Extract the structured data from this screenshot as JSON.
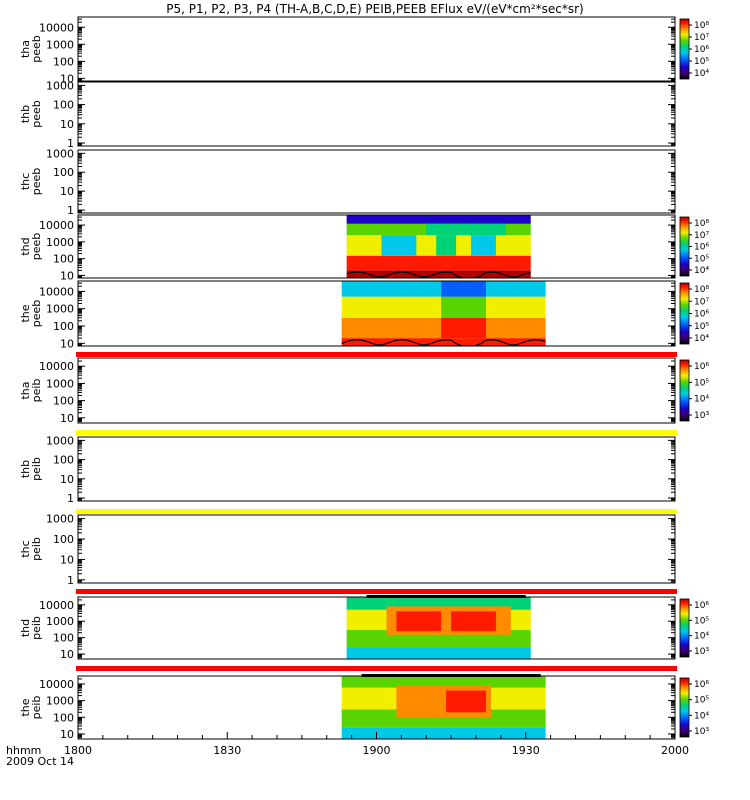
{
  "chart_data": {
    "type": "heatmap",
    "title": "P5, P1, P2, P3, P4 (TH-A,B,C,D,E) PEIB,PEEB EFlux eV/(eV*cm²*sec*sr)",
    "x": {
      "ticks": [
        "1800",
        "1830",
        "1900",
        "1930",
        "2000"
      ],
      "tick_values": [
        0,
        30,
        60,
        90,
        120
      ],
      "range": [
        0,
        120
      ],
      "units": "minutes after 18:00",
      "label_top": "hhmm",
      "label_bottom": "2009 Oct 14"
    },
    "colorbar_palette": [
      "#000000",
      "#3b0072",
      "#1e00c8",
      "#0060ff",
      "#00c8e8",
      "#00d278",
      "#5ad400",
      "#f2ee00",
      "#ff8c00",
      "#ff1a00",
      "#b00000"
    ],
    "panels": [
      {
        "id": "tha-peeb",
        "label": [
          "tha",
          "peeb"
        ],
        "yscale": "log",
        "ytick_labels": [
          "10000",
          "1000",
          "100",
          "10"
        ],
        "ytick_values": [
          10000,
          1000,
          100,
          10
        ],
        "ylim": [
          7,
          40000
        ],
        "colorbar": {
          "labels": [
            "10⁸",
            "10⁷",
            "10⁶",
            "10⁵",
            "10⁴"
          ]
        },
        "data": null,
        "status_bar": null
      },
      {
        "id": "thb-peeb",
        "label": [
          "thb",
          "peeb"
        ],
        "yscale": "log",
        "ytick_labels": [
          "1000",
          "100",
          "10",
          "1"
        ],
        "ytick_values": [
          1000,
          100,
          10,
          1
        ],
        "ylim": [
          0.7,
          1500
        ],
        "colorbar": null,
        "data": null,
        "status_bar": null
      },
      {
        "id": "thc-peeb",
        "label": [
          "thc",
          "peeb"
        ],
        "yscale": "log",
        "ytick_labels": [
          "1000",
          "100",
          "10",
          "1"
        ],
        "ytick_values": [
          1000,
          100,
          10,
          1
        ],
        "ylim": [
          0.7,
          1500
        ],
        "colorbar": null,
        "data": null,
        "status_bar": null
      },
      {
        "id": "thd-peeb",
        "label": [
          "thd",
          "peeb"
        ],
        "yscale": "log",
        "ytick_labels": [
          "10000",
          "1000",
          "100",
          "10"
        ],
        "ytick_values": [
          10000,
          1000,
          100,
          10
        ],
        "ylim": [
          7,
          40000
        ],
        "colorbar": {
          "labels": [
            "10⁸",
            "10⁷",
            "10⁶",
            "10⁵",
            "10⁴"
          ]
        },
        "data": {
          "t_start": 54,
          "t_end": 91,
          "type": "electron",
          "bands": [
            {
              "e_min": 7,
              "e_max": 20,
              "t_from": 54,
              "t_to": 91,
              "color": "#b00000"
            },
            {
              "e_min": 20,
              "e_max": 150,
              "t_from": 54,
              "t_to": 91,
              "color": "#ff1a00"
            },
            {
              "e_min": 150,
              "e_max": 2500,
              "t_from": 54,
              "t_to": 91,
              "color": "#f2ee00"
            },
            {
              "e_min": 2500,
              "e_max": 12000,
              "t_from": 54,
              "t_to": 91,
              "color": "#5ad400"
            },
            {
              "e_min": 12000,
              "e_max": 40000,
              "t_from": 54,
              "t_to": 91,
              "color": "#1e00c8"
            },
            {
              "e_min": 150,
              "e_max": 2500,
              "t_from": 61,
              "t_to": 68,
              "color": "#00c8e8"
            },
            {
              "e_min": 150,
              "e_max": 2500,
              "t_from": 72,
              "t_to": 76,
              "color": "#00d278"
            },
            {
              "e_min": 150,
              "e_max": 2500,
              "t_from": 79,
              "t_to": 84,
              "color": "#00c8e8"
            },
            {
              "e_min": 2500,
              "e_max": 12000,
              "t_from": 70,
              "t_to": 86,
              "color": "#00d278"
            }
          ],
          "spacecraft_potential_line": true
        },
        "status_bar": null
      },
      {
        "id": "the-peeb",
        "label": [
          "the",
          "peeb"
        ],
        "yscale": "log",
        "ytick_labels": [
          "10000",
          "1000",
          "100",
          "10"
        ],
        "ytick_values": [
          10000,
          1000,
          100,
          10
        ],
        "ylim": [
          7,
          40000
        ],
        "colorbar": {
          "labels": [
            "10⁸",
            "10⁷",
            "10⁶",
            "10⁵",
            "10⁴"
          ]
        },
        "data": {
          "t_start": 53,
          "t_end": 94,
          "type": "electron",
          "bands": [
            {
              "e_min": 7,
              "e_max": 20,
              "t_from": 53,
              "t_to": 94,
              "color": "#ff1a00"
            },
            {
              "e_min": 20,
              "e_max": 300,
              "t_from": 53,
              "t_to": 94,
              "color": "#ff8c00"
            },
            {
              "e_min": 300,
              "e_max": 5000,
              "t_from": 53,
              "t_to": 94,
              "color": "#f2ee00"
            },
            {
              "e_min": 5000,
              "e_max": 40000,
              "t_from": 53,
              "t_to": 94,
              "color": "#00c8e8"
            },
            {
              "e_min": 20,
              "e_max": 300,
              "t_from": 73,
              "t_to": 82,
              "color": "#ff1a00"
            },
            {
              "e_min": 300,
              "e_max": 5000,
              "t_from": 73,
              "t_to": 82,
              "color": "#5ad400"
            },
            {
              "e_min": 5000,
              "e_max": 40000,
              "t_from": 73,
              "t_to": 82,
              "color": "#0060ff"
            }
          ],
          "spacecraft_potential_line": true
        },
        "status_bar": "red"
      },
      {
        "id": "tha-peib",
        "label": [
          "tha",
          "peib"
        ],
        "yscale": "log",
        "ytick_labels": [
          "10000",
          "1000",
          "100",
          "10"
        ],
        "ytick_values": [
          10000,
          1000,
          100,
          10
        ],
        "ylim": [
          5,
          30000
        ],
        "colorbar": {
          "labels": [
            "10⁶",
            "10⁵",
            "10⁴",
            "10³"
          ]
        },
        "data": null,
        "status_bar": "yellow"
      },
      {
        "id": "thb-peib",
        "label": [
          "thb",
          "peib"
        ],
        "yscale": "log",
        "ytick_labels": [
          "1000",
          "100",
          "10",
          "1"
        ],
        "ytick_values": [
          1000,
          100,
          10,
          1
        ],
        "ylim": [
          0.7,
          1500
        ],
        "colorbar": null,
        "data": null,
        "status_bar": "yellow"
      },
      {
        "id": "thc-peib",
        "label": [
          "thc",
          "peib"
        ],
        "yscale": "log",
        "ytick_labels": [
          "1000",
          "100",
          "10",
          "1"
        ],
        "ytick_values": [
          1000,
          100,
          10,
          1
        ],
        "ylim": [
          0.7,
          1500
        ],
        "colorbar": null,
        "data": null,
        "status_bar": "red"
      },
      {
        "id": "thd-peib",
        "label": [
          "thd",
          "peib"
        ],
        "yscale": "log",
        "ytick_labels": [
          "10000",
          "1000",
          "100",
          "10"
        ],
        "ytick_values": [
          10000,
          1000,
          100,
          10
        ],
        "ylim": [
          5,
          30000
        ],
        "colorbar": {
          "labels": [
            "10⁶",
            "10⁵",
            "10⁴",
            "10³"
          ]
        },
        "data": {
          "t_start": 54,
          "t_end": 91,
          "type": "ion",
          "bands": [
            {
              "e_min": 5,
              "e_max": 25,
              "t_from": 54,
              "t_to": 91,
              "color": "#00c8e8"
            },
            {
              "e_min": 25,
              "e_max": 300,
              "t_from": 54,
              "t_to": 91,
              "color": "#5ad400"
            },
            {
              "e_min": 300,
              "e_max": 5000,
              "t_from": 54,
              "t_to": 91,
              "color": "#f2ee00"
            },
            {
              "e_min": 5000,
              "e_max": 30000,
              "t_from": 54,
              "t_to": 91,
              "color": "#00d278"
            },
            {
              "e_min": 150,
              "e_max": 8000,
              "t_from": 62,
              "t_to": 87,
              "color": "#ff8c00"
            },
            {
              "e_min": 250,
              "e_max": 4000,
              "t_from": 64,
              "t_to": 73,
              "color": "#ff1a00"
            },
            {
              "e_min": 250,
              "e_max": 4000,
              "t_from": 75,
              "t_to": 84,
              "color": "#ff1a00"
            }
          ],
          "top_black_line": true
        },
        "status_bar": "red"
      },
      {
        "id": "the-peib",
        "label": [
          "the",
          "peib"
        ],
        "yscale": "log",
        "ytick_labels": [
          "10000",
          "1000",
          "100",
          "10"
        ],
        "ytick_values": [
          10000,
          1000,
          100,
          10
        ],
        "ylim": [
          5,
          30000
        ],
        "colorbar": {
          "labels": [
            "10⁶",
            "10⁵",
            "10⁴",
            "10³"
          ]
        },
        "data": {
          "t_start": 53,
          "t_end": 94,
          "type": "ion",
          "bands": [
            {
              "e_min": 5,
              "e_max": 25,
              "t_from": 53,
              "t_to": 94,
              "color": "#00c8e8"
            },
            {
              "e_min": 25,
              "e_max": 300,
              "t_from": 53,
              "t_to": 94,
              "color": "#5ad400"
            },
            {
              "e_min": 300,
              "e_max": 6000,
              "t_from": 53,
              "t_to": 94,
              "color": "#f2ee00"
            },
            {
              "e_min": 6000,
              "e_max": 30000,
              "t_from": 53,
              "t_to": 94,
              "color": "#5ad400"
            },
            {
              "e_min": 100,
              "e_max": 8000,
              "t_from": 64,
              "t_to": 83,
              "color": "#ff8c00"
            },
            {
              "e_min": 200,
              "e_max": 4000,
              "t_from": 74,
              "t_to": 82,
              "color": "#ff1a00"
            }
          ],
          "top_black_line": true
        },
        "status_bar": null
      }
    ]
  }
}
